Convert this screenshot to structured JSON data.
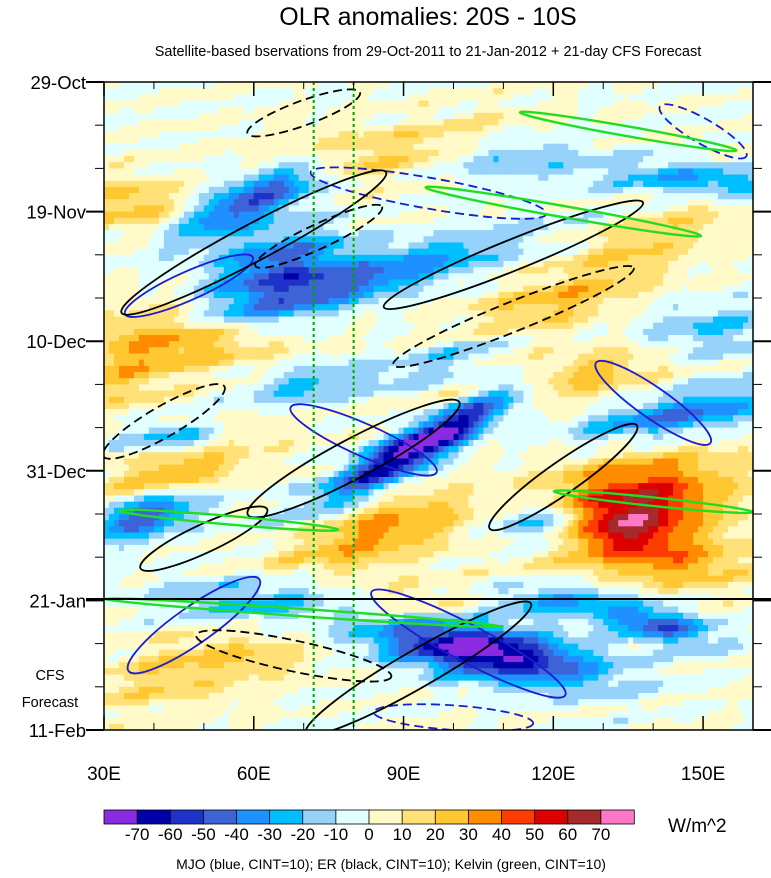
{
  "chart_data": {
    "type": "heatmap",
    "title": "OLR anomalies: 20S - 10S",
    "subtitle": "Satellite-based bservations from 29-Oct-2011 to 21-Jan-2012 + 21-day CFS Forecast",
    "xlim": [
      30,
      160
    ],
    "x_ticks": [
      {
        "value": 30,
        "label": "30E"
      },
      {
        "value": 60,
        "label": "60E"
      },
      {
        "value": 90,
        "label": "90E"
      },
      {
        "value": 120,
        "label": "120E"
      },
      {
        "value": 150,
        "label": "150E"
      }
    ],
    "time_range_days": [
      0,
      105
    ],
    "y_ticks": [
      {
        "day": 0,
        "label": "29-Oct"
      },
      {
        "day": 21,
        "label": "19-Nov"
      },
      {
        "day": 42,
        "label": "10-Dec"
      },
      {
        "day": 63,
        "label": "31-Dec"
      },
      {
        "day": 84,
        "label": "21-Jan"
      },
      {
        "day": 105,
        "label": "11-Feb"
      }
    ],
    "forecast_start_label": "21-Jan",
    "forecast_label": [
      "CFS",
      "Forecast"
    ],
    "reference_lines_lon": [
      72,
      80
    ],
    "colorbar": {
      "unit": "W/m^2",
      "levels": [
        -70,
        -60,
        -50,
        -40,
        -30,
        -20,
        -10,
        0,
        10,
        20,
        30,
        40,
        50,
        60,
        70
      ],
      "labels": [
        "-70",
        "-60",
        "-50",
        "-40",
        "-30",
        "-20",
        "-10",
        "0",
        "10",
        "20",
        "30",
        "40",
        "50",
        "60",
        "70"
      ],
      "colors": [
        "#8a2be2",
        "#0000a8",
        "#1e32c8",
        "#3c64d7",
        "#1e90ff",
        "#00bfff",
        "#96d2fa",
        "#e1ffff",
        "#fffac8",
        "#ffe178",
        "#ffc832",
        "#ff8c00",
        "#ff3c00",
        "#dc0000",
        "#a52a2a",
        "#ff78c8"
      ]
    },
    "footer": "MJO (blue, CINT=10); ER (black, CINT=10); Kelvin (green, CINT=10)",
    "series": [
      {
        "name": "MJO",
        "color": "#1c1cd0",
        "contours": [
          {
            "lon": 47,
            "day": 33,
            "a": 14,
            "b": 2.3,
            "ang": -24,
            "neg": false
          },
          {
            "lon": 82,
            "day": 58,
            "a": 16,
            "b": 2.6,
            "ang": 24,
            "neg": false
          },
          {
            "lon": 103,
            "day": 91,
            "a": 22,
            "b": 3.0,
            "ang": 28,
            "neg": false
          },
          {
            "lon": 48,
            "day": 88,
            "a": 16,
            "b": 3.0,
            "ang": -35,
            "neg": false
          },
          {
            "lon": 140,
            "day": 52,
            "a": 14,
            "b": 2.5,
            "ang": 35,
            "neg": false
          },
          {
            "lon": 150,
            "day": 8,
            "a": 10,
            "b": 2.0,
            "ang": 30,
            "neg": true
          },
          {
            "lon": 95,
            "day": 18,
            "a": 24,
            "b": 2.5,
            "ang": 10,
            "neg": true
          },
          {
            "lon": 100,
            "day": 103,
            "a": 16,
            "b": 2.0,
            "ang": 4,
            "neg": true
          }
        ]
      },
      {
        "name": "ER",
        "color": "#000000",
        "contours": [
          {
            "lon": 60,
            "day": 26,
            "a": 30,
            "b": 3.0,
            "ang": -28,
            "neg": false
          },
          {
            "lon": 112,
            "day": 28,
            "a": 28,
            "b": 2.5,
            "ang": -22,
            "neg": false
          },
          {
            "lon": 80,
            "day": 61,
            "a": 24,
            "b": 3.2,
            "ang": -28,
            "neg": false
          },
          {
            "lon": 93,
            "day": 95,
            "a": 26,
            "b": 3.0,
            "ang": -30,
            "neg": false
          },
          {
            "lon": 50,
            "day": 74,
            "a": 14,
            "b": 2.3,
            "ang": -25,
            "neg": false
          },
          {
            "lon": 122,
            "day": 64,
            "a": 18,
            "b": 2.6,
            "ang": -35,
            "neg": false
          },
          {
            "lon": 68,
            "day": 93,
            "a": 20,
            "b": 2.5,
            "ang": 12,
            "neg": true
          },
          {
            "lon": 112,
            "day": 38,
            "a": 26,
            "b": 2.4,
            "ang": -22,
            "neg": true
          },
          {
            "lon": 73,
            "day": 25,
            "a": 14,
            "b": 2.0,
            "ang": -25,
            "neg": true
          },
          {
            "lon": 70,
            "day": 5,
            "a": 12,
            "b": 2.0,
            "ang": -20,
            "neg": true
          },
          {
            "lon": 42,
            "day": 55,
            "a": 14,
            "b": 2.5,
            "ang": -30,
            "neg": true
          }
        ]
      },
      {
        "name": "Kelvin",
        "color": "#22dd22",
        "contours": [
          {
            "lon": 122,
            "day": 21,
            "a": 28,
            "b": 0.9,
            "ang": 10,
            "neg": false
          },
          {
            "lon": 135,
            "day": 8,
            "a": 22,
            "b": 0.8,
            "ang": 10,
            "neg": false
          },
          {
            "lon": 55,
            "day": 71,
            "a": 22,
            "b": 0.7,
            "ang": 5,
            "neg": false
          },
          {
            "lon": 70,
            "day": 86,
            "a": 40,
            "b": 0.6,
            "ang": 4,
            "neg": false
          },
          {
            "lon": 140,
            "day": 68,
            "a": 20,
            "b": 0.7,
            "ang": 6,
            "neg": false
          }
        ]
      }
    ]
  }
}
